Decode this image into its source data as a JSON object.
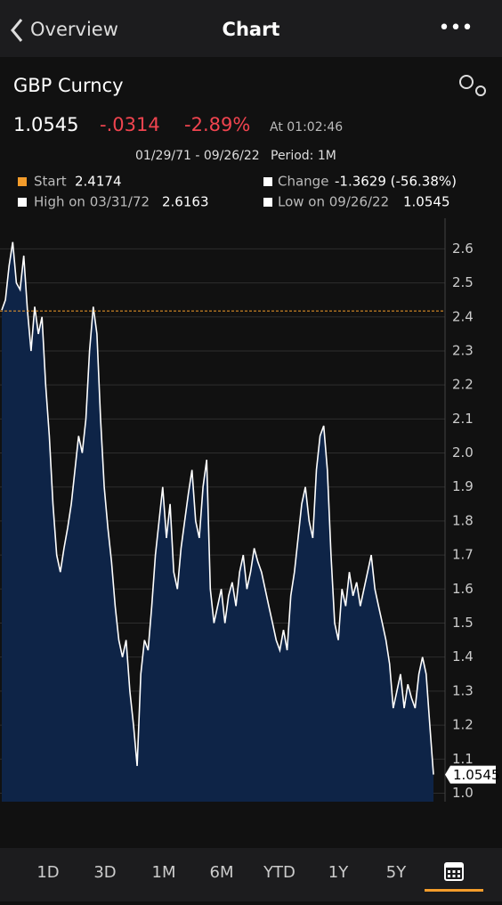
{
  "nav": {
    "back": "Overview",
    "title": "Chart",
    "menu": "•••"
  },
  "quote": {
    "ticker": "GBP Curncy",
    "price": "1.0545",
    "change": "-.0314",
    "change_pct": "-2.89%",
    "time": "At 01:02:46",
    "range": "01/29/71 - 09/26/22",
    "period": "Period: 1M"
  },
  "chart_data": {
    "type": "area",
    "legend": {
      "start_label": "Start",
      "start": 2.4174,
      "start_color": "#f39c2b",
      "change_label": "Change",
      "change": "-1.3629 (-56.38%)",
      "high_label": "High on 03/31/72",
      "high": 2.6163,
      "low_label": "Low on 09/26/22",
      "low": 1.0545
    },
    "values": [
      2.42,
      2.45,
      2.55,
      2.62,
      2.5,
      2.48,
      2.58,
      2.42,
      2.3,
      2.43,
      2.35,
      2.4,
      2.2,
      2.05,
      1.85,
      1.7,
      1.65,
      1.72,
      1.78,
      1.85,
      1.95,
      2.05,
      2.0,
      2.1,
      2.3,
      2.43,
      2.35,
      2.1,
      1.9,
      1.78,
      1.68,
      1.55,
      1.45,
      1.4,
      1.45,
      1.3,
      1.2,
      1.08,
      1.35,
      1.45,
      1.42,
      1.55,
      1.7,
      1.8,
      1.9,
      1.75,
      1.85,
      1.65,
      1.6,
      1.72,
      1.8,
      1.88,
      1.95,
      1.8,
      1.75,
      1.9,
      1.98,
      1.6,
      1.5,
      1.55,
      1.6,
      1.5,
      1.58,
      1.62,
      1.55,
      1.65,
      1.7,
      1.6,
      1.65,
      1.72,
      1.68,
      1.65,
      1.6,
      1.55,
      1.5,
      1.45,
      1.42,
      1.48,
      1.42,
      1.58,
      1.65,
      1.75,
      1.85,
      1.9,
      1.8,
      1.75,
      1.95,
      2.05,
      2.08,
      1.95,
      1.7,
      1.5,
      1.45,
      1.6,
      1.55,
      1.65,
      1.58,
      1.62,
      1.55,
      1.6,
      1.65,
      1.7,
      1.6,
      1.55,
      1.5,
      1.45,
      1.38,
      1.25,
      1.3,
      1.35,
      1.25,
      1.32,
      1.28,
      1.25,
      1.35,
      1.4,
      1.35,
      1.2,
      1.0545
    ],
    "color": "#ffffff",
    "fill": "#0e2447",
    "ylim": [
      0.975,
      2.69
    ],
    "yticks": [
      {
        "value": 1,
        "label": "1.0"
      },
      1.1,
      1.2,
      1.3,
      1.4,
      1.5,
      1.6,
      1.7,
      1.8,
      1.9,
      {
        "value": 2,
        "label": "2.0"
      },
      2.1,
      2.2,
      2.3,
      2.4,
      2.5,
      2.6
    ],
    "grid": true
  },
  "tabs": [
    "1D",
    "3D",
    "1M",
    "6M",
    "YTD",
    "1Y",
    "5Y"
  ]
}
